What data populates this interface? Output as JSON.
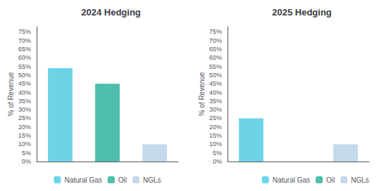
{
  "chart_data": [
    {
      "type": "bar",
      "title": "2024 Hedging",
      "categories": [
        "Natural Gas",
        "Oil",
        "NGLs"
      ],
      "values": [
        54,
        45,
        10
      ],
      "colors": [
        "#6DD4E8",
        "#4DBFAA",
        "#C5D9ED"
      ],
      "ylabel": "% of Revenue",
      "ylim": [
        0,
        78
      ],
      "yticks": [
        {
          "value": 0,
          "label": "0%"
        },
        {
          "value": 5,
          "label": "5%"
        },
        {
          "value": 10,
          "label": "10%"
        },
        {
          "value": 15,
          "label": "15%"
        },
        {
          "value": 20,
          "label": "20%"
        },
        {
          "value": 25,
          "label": "25%"
        },
        {
          "value": 30,
          "label": "30%"
        },
        {
          "value": 35,
          "label": "35%"
        },
        {
          "value": 40,
          "label": "40%"
        },
        {
          "value": 45,
          "label": "45%"
        },
        {
          "value": 50,
          "label": "50%"
        },
        {
          "value": 55,
          "label": "55%"
        },
        {
          "value": 60,
          "label": "60%"
        },
        {
          "value": 65,
          "label": "65%"
        },
        {
          "value": 70,
          "label": "70%"
        },
        {
          "value": 75,
          "label": "75%"
        }
      ],
      "grid": false,
      "legend": "bottom",
      "tick_labels": "y"
    },
    {
      "type": "bar",
      "title": "2025 Hedging",
      "categories": [
        "Natural Gas",
        "Oil",
        "NGLs"
      ],
      "values": [
        25,
        0,
        10
      ],
      "colors": [
        "#6DD4E8",
        "#4DBFAA",
        "#C5D9ED"
      ],
      "ylabel": "% of Revenue",
      "ylim": [
        0,
        78
      ],
      "yticks": [
        {
          "value": 0,
          "label": "0%"
        },
        {
          "value": 5,
          "label": "5%"
        },
        {
          "value": 10,
          "label": "10%"
        },
        {
          "value": 15,
          "label": "15%"
        },
        {
          "value": 20,
          "label": "20%"
        },
        {
          "value": 25,
          "label": "25%"
        },
        {
          "value": 30,
          "label": "30%"
        },
        {
          "value": 35,
          "label": "35%"
        },
        {
          "value": 40,
          "label": "40%"
        },
        {
          "value": 45,
          "label": "45%"
        },
        {
          "value": 50,
          "label": "50%"
        },
        {
          "value": 55,
          "label": "55%"
        },
        {
          "value": 60,
          "label": "60%"
        },
        {
          "value": 65,
          "label": "65%"
        },
        {
          "value": 70,
          "label": "70%"
        },
        {
          "value": 75,
          "label": "75%"
        }
      ],
      "grid": false,
      "legend": "bottom",
      "tick_labels": "y"
    }
  ]
}
